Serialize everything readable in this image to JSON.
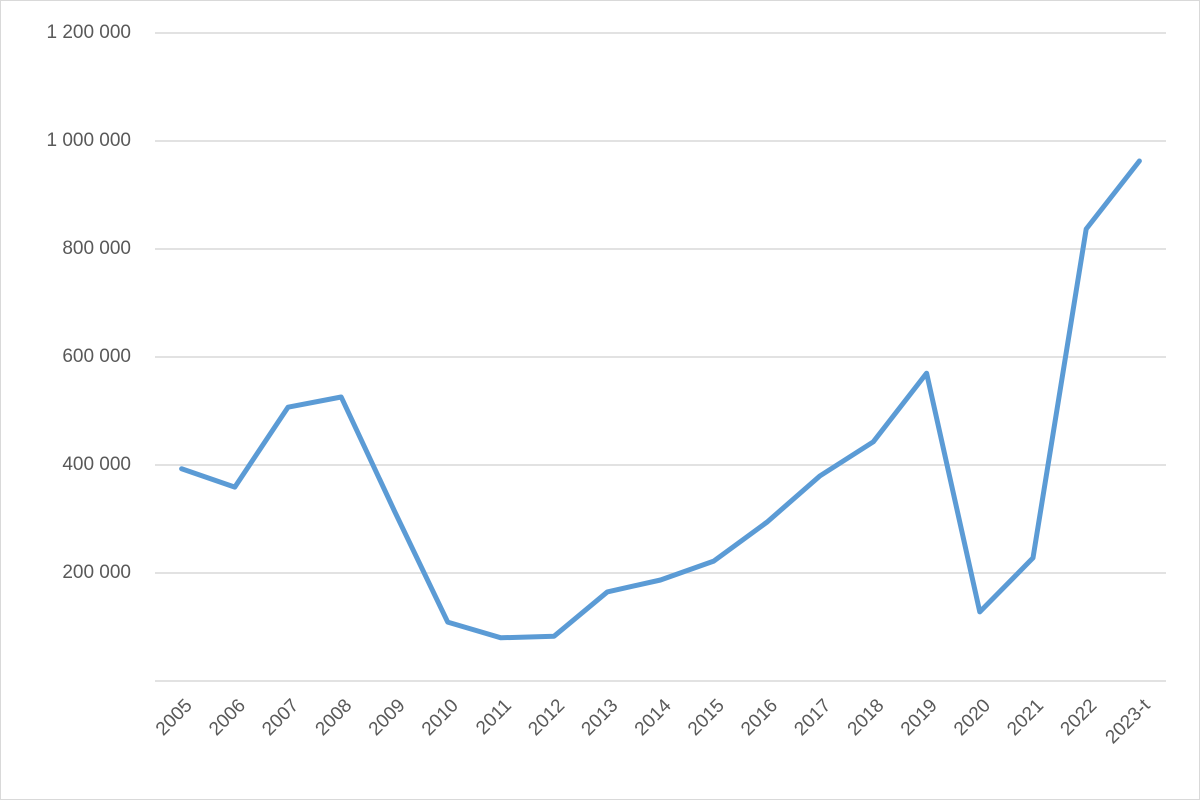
{
  "chart_data": {
    "type": "line",
    "categories": [
      "2005",
      "2006",
      "2007",
      "2008",
      "2009",
      "2010",
      "2011",
      "2012",
      "2013",
      "2014",
      "2015",
      "2016",
      "2017",
      "2018",
      "2019",
      "2020",
      "2021",
      "2022",
      "2023-t"
    ],
    "values": [
      393000,
      359000,
      507000,
      526000,
      315000,
      109000,
      80000,
      83000,
      165000,
      187000,
      222000,
      294000,
      380000,
      443000,
      570000,
      128000,
      228000,
      837000,
      963000
    ],
    "color": "#5b9bd5",
    "ylim": [
      0,
      1200000
    ],
    "yticks": [
      {
        "value": 200000,
        "label": "200 000"
      },
      {
        "value": 400000,
        "label": "400 000"
      },
      {
        "value": 600000,
        "label": "600 000"
      },
      {
        "value": 800000,
        "label": "800 000"
      },
      {
        "value": 1000000,
        "label": "1 000 000"
      },
      {
        "value": 1200000,
        "label": "1 200 000"
      }
    ],
    "grid": true
  }
}
